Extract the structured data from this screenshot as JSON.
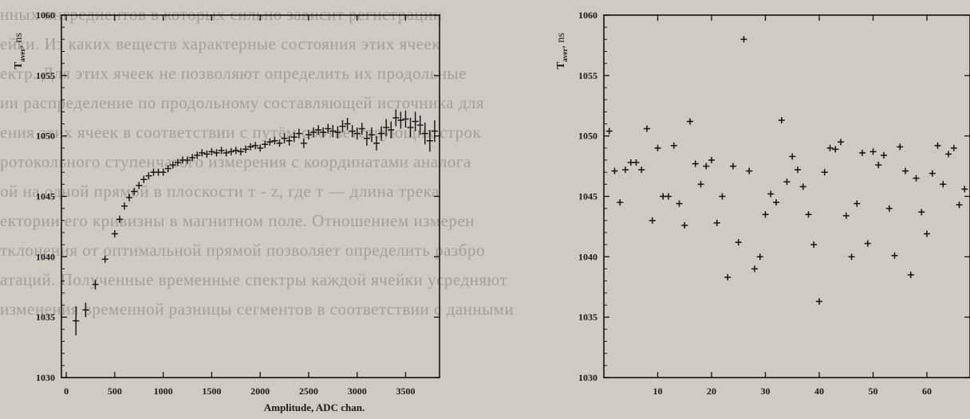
{
  "background_text": [
    "нных ингредиентов в которых сильно зависит регистрации",
    "ейки. Из каких веществ характерные состояния этих ячеек",
    "ектр. Для этих ячеек не позволяют определить их продольные",
    "ии распределение по продольному составляющей источника для",
    "ения этих ячеек в соответствии с путём соответствующих строк",
    "ротокольного ступенчатого измерения с координатами аналога",
    "ой на одной прямой в плоскости т - z, где т — длина трека",
    "ектории его кривизны в магнитном поле. Отношением измерен",
    "тклонения от оптимальной прямой позволяет определить разбро",
    "атаций. Полученные временные спектры каждой ячейки усредняют",
    "изменения временной разницы сегментов в соответствии с данными"
  ],
  "chart_data": [
    {
      "type": "scatter",
      "title": "",
      "xlabel": "Amplitude, ADC chan.",
      "ylabel_main": "T",
      "ylabel_sub": "aver",
      "ylabel_unit": ", ns",
      "xlim": [
        -50,
        3850
      ],
      "ylim": [
        1030,
        1060
      ],
      "xticks": [
        0,
        500,
        1000,
        1500,
        2000,
        2500,
        3000,
        3500
      ],
      "yticks": [
        1030,
        1035,
        1040,
        1045,
        1050,
        1055,
        1060
      ],
      "error_bars": true,
      "x": [
        100,
        200,
        300,
        400,
        500,
        550,
        600,
        650,
        700,
        750,
        800,
        850,
        900,
        950,
        1000,
        1050,
        1100,
        1150,
        1200,
        1250,
        1300,
        1350,
        1400,
        1450,
        1500,
        1550,
        1600,
        1650,
        1700,
        1750,
        1800,
        1850,
        1900,
        1950,
        2000,
        2050,
        2100,
        2150,
        2200,
        2250,
        2300,
        2350,
        2400,
        2450,
        2500,
        2550,
        2600,
        2650,
        2700,
        2750,
        2800,
        2850,
        2900,
        2950,
        3000,
        3050,
        3100,
        3150,
        3200,
        3250,
        3300,
        3350,
        3400,
        3450,
        3500,
        3550,
        3600,
        3650,
        3700,
        3750,
        3800
      ],
      "y": [
        1034.7,
        1035.6,
        1037.7,
        1039.8,
        1041.9,
        1043.1,
        1044.2,
        1044.9,
        1045.4,
        1045.9,
        1046.4,
        1046.7,
        1047.0,
        1047.0,
        1047.0,
        1047.3,
        1047.6,
        1047.8,
        1048.0,
        1048.0,
        1048.2,
        1048.4,
        1048.6,
        1048.5,
        1048.7,
        1048.6,
        1048.8,
        1048.6,
        1048.7,
        1048.8,
        1048.7,
        1048.9,
        1049.1,
        1049.2,
        1049.0,
        1049.3,
        1049.5,
        1049.6,
        1049.4,
        1049.8,
        1049.6,
        1049.9,
        1050.2,
        1049.4,
        1050.1,
        1050.3,
        1050.5,
        1050.3,
        1050.6,
        1050.4,
        1050.3,
        1050.8,
        1051.0,
        1050.4,
        1050.2,
        1050.6,
        1049.8,
        1050.1,
        1049.4,
        1050.2,
        1050.7,
        1050.5,
        1051.5,
        1051.3,
        1051.4,
        1050.7,
        1051.2,
        1050.9,
        1050.2,
        1049.6,
        1050.4
      ],
      "err": [
        1.2,
        0.6,
        0.4,
        0.3,
        0.3,
        0.3,
        0.3,
        0.3,
        0.3,
        0.3,
        0.3,
        0.3,
        0.3,
        0.3,
        0.3,
        0.3,
        0.3,
        0.3,
        0.3,
        0.3,
        0.3,
        0.3,
        0.3,
        0.3,
        0.3,
        0.3,
        0.3,
        0.3,
        0.3,
        0.3,
        0.3,
        0.3,
        0.3,
        0.3,
        0.3,
        0.3,
        0.3,
        0.3,
        0.3,
        0.4,
        0.4,
        0.4,
        0.4,
        0.4,
        0.4,
        0.4,
        0.4,
        0.4,
        0.4,
        0.5,
        0.5,
        0.5,
        0.5,
        0.5,
        0.5,
        0.5,
        0.6,
        0.6,
        0.6,
        0.6,
        0.7,
        0.7,
        0.7,
        0.7,
        0.7,
        0.8,
        0.8,
        0.8,
        0.9,
        0.9,
        0.9
      ]
    },
    {
      "type": "scatter",
      "title": "",
      "xlabel": "ZC Sector",
      "ylabel_main": "T",
      "ylabel_sub": "aver",
      "ylabel_unit": ", ns",
      "xlim": [
        0,
        68
      ],
      "ylim": [
        1030,
        1060
      ],
      "xticks": [
        10,
        20,
        30,
        40,
        50,
        60
      ],
      "yticks": [
        1030,
        1035,
        1040,
        1045,
        1050,
        1055,
        1060
      ],
      "error_bars": false,
      "x": [
        1,
        2,
        3,
        4,
        5,
        6,
        7,
        8,
        9,
        10,
        11,
        12,
        13,
        14,
        15,
        16,
        17,
        18,
        19,
        20,
        21,
        22,
        23,
        24,
        25,
        26,
        27,
        28,
        29,
        30,
        31,
        32,
        33,
        34,
        35,
        36,
        37,
        38,
        39,
        40,
        41,
        42,
        43,
        44,
        45,
        46,
        47,
        48,
        49,
        50,
        51,
        52,
        53,
        54,
        55,
        56,
        57,
        58,
        59,
        60,
        61,
        62,
        63,
        64,
        65,
        66,
        67
      ],
      "y": [
        1050.4,
        1047.1,
        1044.5,
        1047.2,
        1047.8,
        1047.8,
        1047.2,
        1050.6,
        1043.0,
        1049.0,
        1045.0,
        1045.0,
        1049.2,
        1044.4,
        1042.6,
        1051.2,
        1047.7,
        1046.0,
        1047.5,
        1048.0,
        1042.8,
        1045.0,
        1038.3,
        1047.5,
        1041.2,
        1058.0,
        1047.1,
        1039.0,
        1040.0,
        1043.5,
        1045.2,
        1044.5,
        1051.3,
        1046.2,
        1048.3,
        1047.2,
        1045.8,
        1043.5,
        1041.0,
        1036.3,
        1047.0,
        1049.0,
        1048.9,
        1049.5,
        1043.4,
        1040.0,
        1044.4,
        1048.6,
        1041.1,
        1048.7,
        1047.6,
        1048.4,
        1044.0,
        1040.1,
        1049.1,
        1047.1,
        1038.5,
        1046.5,
        1043.7,
        1041.9,
        1046.9,
        1049.2,
        1046.0,
        1048.5,
        1049.0,
        1044.3,
        1045.6
      ]
    }
  ]
}
